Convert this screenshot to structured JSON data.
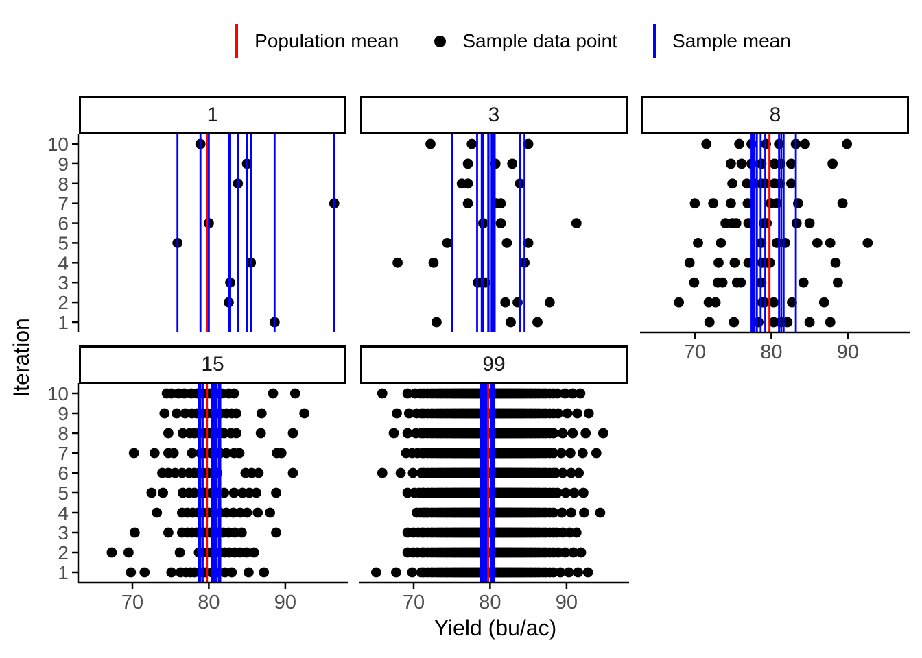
{
  "chart_data": {
    "type": "scatter",
    "title": "",
    "xlabel": "Yield (bu/ac)",
    "ylabel": "Iteration",
    "x_ticks": [
      70,
      80,
      90
    ],
    "y_ticks": [
      10,
      9,
      8,
      7,
      6,
      5,
      4,
      3,
      2,
      1
    ],
    "xlim": [
      63,
      98
    ],
    "grid": false,
    "legend_position": "top",
    "population_mean": 79.75,
    "colors": {
      "population_mean_line": "#FF0000",
      "sample_mean_line": "#0000FF",
      "sample_point": "#000000",
      "axis_text": "#4D4D4D",
      "axis_line": "#000000",
      "strip_border": "#000000",
      "background": "#FFFFFF"
    },
    "legend_items": [
      {
        "kind": "vline",
        "color": "#FF0000",
        "label": "Population mean"
      },
      {
        "kind": "point",
        "color": "#000000",
        "label": "Sample data point"
      },
      {
        "kind": "vline",
        "color": "#0000FF",
        "label": "Sample mean"
      }
    ],
    "facets": [
      {
        "label": "1",
        "n": 1,
        "sample_means": [
          88.6,
          82.6,
          82.8,
          85.5,
          75.9,
          80.0,
          96.4,
          83.8,
          85.0,
          78.9
        ],
        "points": {
          "1": [
            88.6
          ],
          "2": [
            82.6
          ],
          "3": [
            82.8
          ],
          "4": [
            85.5
          ],
          "5": [
            75.9
          ],
          "6": [
            80.0
          ],
          "7": [
            96.4
          ],
          "8": [
            83.8
          ],
          "9": [
            85.0
          ],
          "10": [
            78.9
          ]
        }
      },
      {
        "label": "3",
        "n": 3,
        "sample_means": [
          80.6,
          84.5,
          78.9,
          75.0,
          80.5,
          83.9,
          79.8,
          79.1,
          80.2,
          78.3
        ],
        "points": {
          "1": [
            73.0,
            82.7,
            86.2
          ],
          "2": [
            82.0,
            83.6,
            87.8
          ],
          "3": [
            78.4,
            78.9,
            79.4
          ],
          "4": [
            67.9,
            72.6,
            84.5
          ],
          "5": [
            74.4,
            82.2,
            85.0
          ],
          "6": [
            79.1,
            81.4,
            91.3
          ],
          "7": [
            77.1,
            80.8,
            81.4
          ],
          "8": [
            76.3,
            77.1,
            83.9
          ],
          "9": [
            77.1,
            80.7,
            82.9
          ],
          "10": [
            72.2,
            77.6,
            85.0
          ]
        }
      },
      {
        "label": "8",
        "n": 8,
        "sample_means": [
          77.4,
          77.6,
          77.8,
          78.1,
          78.6,
          79.2,
          81.0,
          81.3,
          81.6,
          83.2
        ],
        "points": {
          "1": [
            71.9,
            75.1,
            78.3,
            80.3,
            81.2,
            82.1,
            85.0,
            87.7
          ],
          "2": [
            67.9,
            71.8,
            72.7,
            78.8,
            79.1,
            80.3,
            82.7,
            86.9
          ],
          "3": [
            69.9,
            73.0,
            73.6,
            75.5,
            76.0,
            78.7,
            84.2,
            88.7
          ],
          "4": [
            69.3,
            73.1,
            75.2,
            77.0,
            78.8,
            79.5,
            79.8,
            88.4
          ],
          "5": [
            70.4,
            73.4,
            78.7,
            80.7,
            81.8,
            86.0,
            87.7,
            92.6
          ],
          "6": [
            74.0,
            74.9,
            75.4,
            77.0,
            79.0,
            79.4,
            83.3,
            85.0
          ],
          "7": [
            70.0,
            72.4,
            74.7,
            76.9,
            79.9,
            80.7,
            83.5,
            89.3
          ],
          "8": [
            74.9,
            76.8,
            77.8,
            78.7,
            79.2,
            80.4,
            81.1,
            82.6
          ],
          "9": [
            74.7,
            76.1,
            77.4,
            78.7,
            80.4,
            81.2,
            82.6,
            88.0
          ],
          "10": [
            71.5,
            75.8,
            77.4,
            79.3,
            81.0,
            83.2,
            84.4,
            89.9
          ]
        }
      },
      {
        "label": "15",
        "n": 15,
        "sample_means": [
          78.7,
          78.9,
          79.2,
          80.4,
          80.5,
          80.6,
          80.8,
          81.0,
          81.3,
          81.5
        ],
        "points": {
          "1": [
            69.8,
            71.6,
            75.1,
            76.3,
            77.0,
            77.6,
            78.1,
            78.8,
            79.5,
            80.4,
            81.2,
            82.1,
            83.0,
            85.2,
            87.2
          ],
          "2": [
            67.3,
            69.5,
            76.2,
            78.7,
            79.2,
            79.8,
            80.3,
            80.9,
            81.5,
            82.1,
            82.7,
            83.4,
            84.1,
            84.9,
            85.9
          ],
          "3": [
            70.3,
            74.7,
            76.5,
            77.2,
            77.8,
            78.4,
            79.0,
            79.6,
            80.2,
            81.1,
            81.9,
            82.6,
            83.4,
            84.3,
            88.8
          ],
          "4": [
            73.2,
            76.5,
            77.2,
            77.9,
            78.6,
            79.3,
            80.0,
            80.7,
            81.5,
            82.3,
            83.2,
            84.1,
            85.0,
            86.4,
            88.0
          ],
          "5": [
            72.5,
            74.0,
            76.6,
            77.4,
            78.1,
            78.9,
            79.6,
            80.4,
            81.2,
            82.0,
            83.3,
            84.4,
            85.3,
            86.2,
            88.8
          ],
          "6": [
            73.9,
            74.7,
            75.6,
            76.5,
            77.4,
            78.1,
            78.7,
            79.3,
            79.9,
            80.5,
            81.1,
            84.8,
            85.6,
            86.5,
            91.0
          ],
          "7": [
            70.2,
            72.9,
            74.7,
            75.4,
            77.8,
            78.9,
            79.6,
            80.3,
            80.9,
            81.5,
            82.3,
            83.3,
            84.0,
            88.9,
            89.5
          ],
          "8": [
            74.7,
            76.6,
            77.5,
            78.1,
            78.7,
            79.4,
            79.8,
            80.3,
            80.9,
            81.4,
            82.0,
            82.9,
            83.6,
            86.8,
            91.0
          ],
          "9": [
            74.2,
            75.8,
            76.9,
            77.8,
            78.4,
            79.2,
            79.8,
            80.4,
            81.0,
            81.6,
            82.3,
            83.0,
            83.6,
            86.9,
            92.5
          ],
          "10": [
            74.5,
            75.1,
            76.0,
            76.8,
            77.7,
            78.5,
            79.3,
            80.1,
            80.6,
            81.0,
            81.7,
            82.6,
            83.3,
            88.4,
            91.3
          ]
        }
      },
      {
        "label": "99",
        "n": 99,
        "sample_means": [
          78.8,
          79.0,
          79.1,
          79.2,
          79.4,
          79.5,
          80.1,
          80.2,
          80.3,
          80.5
        ],
        "points_core": [
          71.3,
          71.8,
          72.3,
          72.6,
          73.0,
          73.3,
          73.6,
          73.8,
          74.1,
          74.3,
          74.5,
          74.8,
          75.0,
          75.2,
          75.4,
          75.5,
          75.7,
          75.9,
          76.1,
          76.2,
          76.4,
          76.5,
          76.7,
          76.9,
          77.0,
          77.1,
          77.3,
          77.4,
          77.6,
          77.7,
          77.9,
          78.0,
          78.1,
          78.3,
          78.4,
          78.5,
          78.7,
          78.8,
          78.9,
          79.0,
          79.2,
          79.3,
          79.4,
          79.5,
          79.7,
          79.8,
          79.9,
          80.1,
          80.2,
          80.3,
          80.4,
          80.6,
          80.7,
          80.8,
          80.9,
          81.1,
          81.2,
          81.3,
          81.5,
          81.6,
          81.7,
          81.9,
          82.0,
          82.2,
          82.3,
          82.5,
          82.6,
          82.7,
          82.9,
          83.1,
          83.2,
          83.4,
          83.5,
          83.7,
          83.9,
          84.1,
          84.2,
          84.4,
          84.6,
          84.8,
          85.1,
          85.3,
          85.5,
          85.8,
          86.0,
          86.3,
          86.6,
          87.0,
          87.3,
          87.8,
          88.3
        ],
        "points_edges": {
          "1": {
            "head": [
              65.1,
              67.7,
              69.8,
              71.0
            ],
            "tail": [
              89.2,
              90.3,
              91.5,
              92.8
            ]
          },
          "2": {
            "head": [
              69.2,
              69.9,
              70.5,
              71.1
            ],
            "tail": [
              88.9,
              89.8,
              90.9,
              91.9
            ]
          },
          "3": {
            "head": [
              69.2,
              70.0,
              70.6,
              71.1
            ],
            "tail": [
              88.7,
              89.5,
              90.4,
              91.3
            ]
          },
          "4": {
            "head": [
              70.4,
              70.9,
              71.3,
              71.7
            ],
            "tail": [
              89.4,
              90.6,
              92.3,
              94.4
            ]
          },
          "5": {
            "head": [
              69.2,
              70.1,
              70.7,
              71.2
            ],
            "tail": [
              88.8,
              89.9,
              91.0,
              92.2
            ]
          },
          "6": {
            "head": [
              65.9,
              68.3,
              69.9,
              71.0
            ],
            "tail": [
              88.6,
              89.5,
              90.6,
              91.6
            ]
          },
          "7": {
            "head": [
              69.0,
              69.8,
              70.5,
              71.1
            ],
            "tail": [
              89.3,
              90.5,
              92.1,
              93.9
            ]
          },
          "8": {
            "head": [
              67.4,
              69.2,
              70.3,
              71.0
            ],
            "tail": [
              89.5,
              90.8,
              92.5,
              94.8
            ]
          },
          "9": {
            "head": [
              67.8,
              69.4,
              70.4,
              71.0
            ],
            "tail": [
              88.9,
              90.1,
              91.4,
              92.9
            ]
          },
          "10": {
            "head": [
              65.9,
              69.2,
              70.2,
              70.9
            ],
            "tail": [
              88.8,
              89.8,
              90.8,
              91.8
            ]
          }
        }
      }
    ]
  }
}
